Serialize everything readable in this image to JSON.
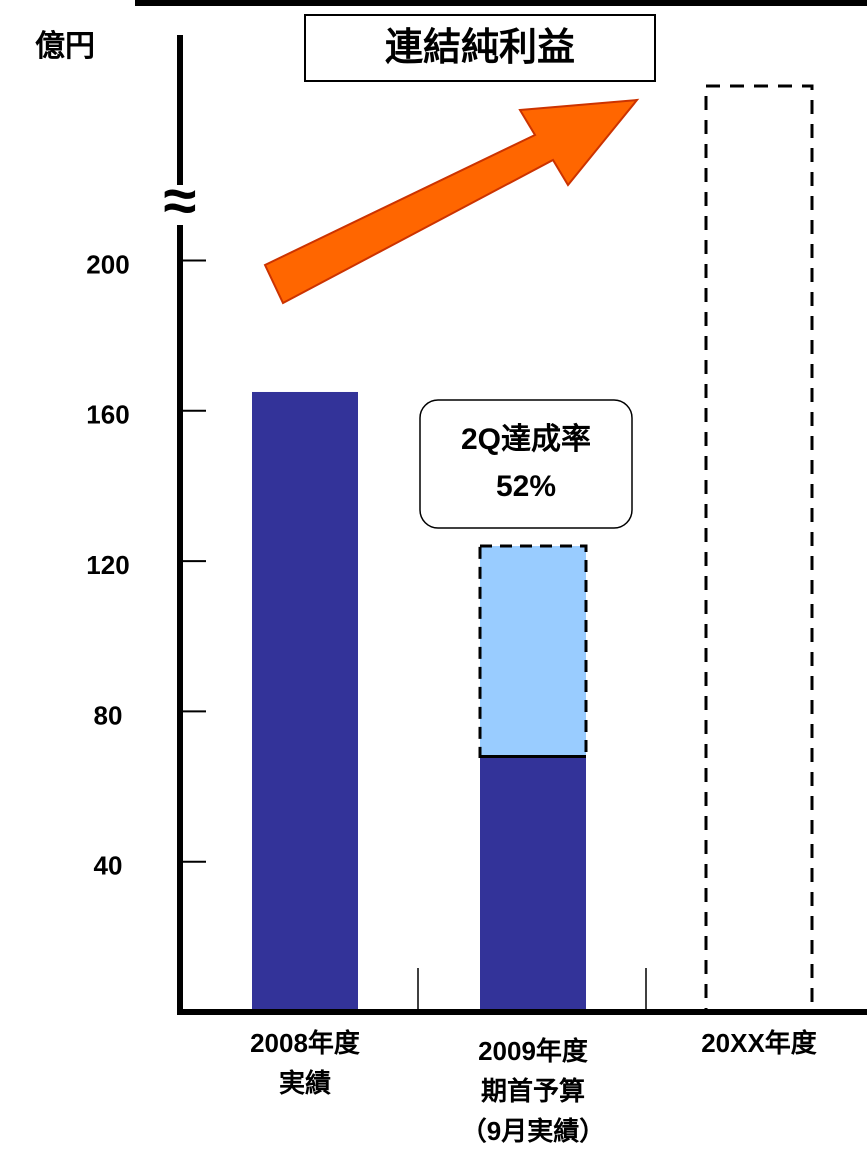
{
  "chart_data": {
    "type": "bar",
    "stacked": true,
    "title": "連結純利益",
    "unit_label": "億円",
    "categories": [
      [
        "2008年度",
        "実績"
      ],
      [
        "2009年度",
        "期首予算",
        "（9月実績）"
      ],
      [
        "20XX年度"
      ]
    ],
    "series": [
      {
        "color": "#333399",
        "values": [
          165,
          68,
          null
        ]
      },
      {
        "color": "#99ccff",
        "values": [
          null,
          56,
          null
        ],
        "dashed": true
      }
    ],
    "ylim": [
      0,
      260
    ],
    "yticks": [
      40,
      80,
      120,
      160,
      200
    ],
    "annotation": {
      "lines": [
        "2Q達成率",
        "52%"
      ]
    }
  }
}
